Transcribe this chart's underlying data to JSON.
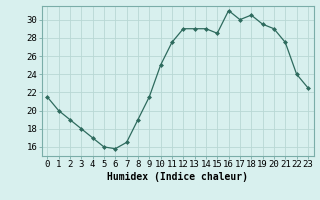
{
  "x": [
    0,
    1,
    2,
    3,
    4,
    5,
    6,
    7,
    8,
    9,
    10,
    11,
    12,
    13,
    14,
    15,
    16,
    17,
    18,
    19,
    20,
    21,
    22,
    23
  ],
  "y": [
    21.5,
    20.0,
    19.0,
    18.0,
    17.0,
    16.0,
    15.8,
    16.5,
    19.0,
    21.5,
    25.0,
    27.5,
    29.0,
    29.0,
    29.0,
    28.5,
    31.0,
    30.0,
    30.5,
    29.5,
    29.0,
    27.5,
    24.0,
    22.5
  ],
  "line_color": "#2e6b5e",
  "marker": "D",
  "markersize": 2.0,
  "linewidth": 0.9,
  "background_color": "#d8f0ee",
  "grid_color": "#b8d8d4",
  "xlabel": "Humidex (Indice chaleur)",
  "xlim": [
    -0.5,
    23.5
  ],
  "ylim": [
    15.0,
    31.5
  ],
  "xtick_labels": [
    "0",
    "1",
    "2",
    "3",
    "4",
    "5",
    "6",
    "7",
    "8",
    "9",
    "10",
    "11",
    "12",
    "13",
    "14",
    "15",
    "16",
    "17",
    "18",
    "19",
    "20",
    "21",
    "22",
    "23"
  ],
  "ytick_values": [
    16,
    18,
    20,
    22,
    24,
    26,
    28,
    30
  ],
  "xlabel_fontsize": 7,
  "tick_fontsize": 6.5,
  "ylabel_fontsize": 6.5
}
